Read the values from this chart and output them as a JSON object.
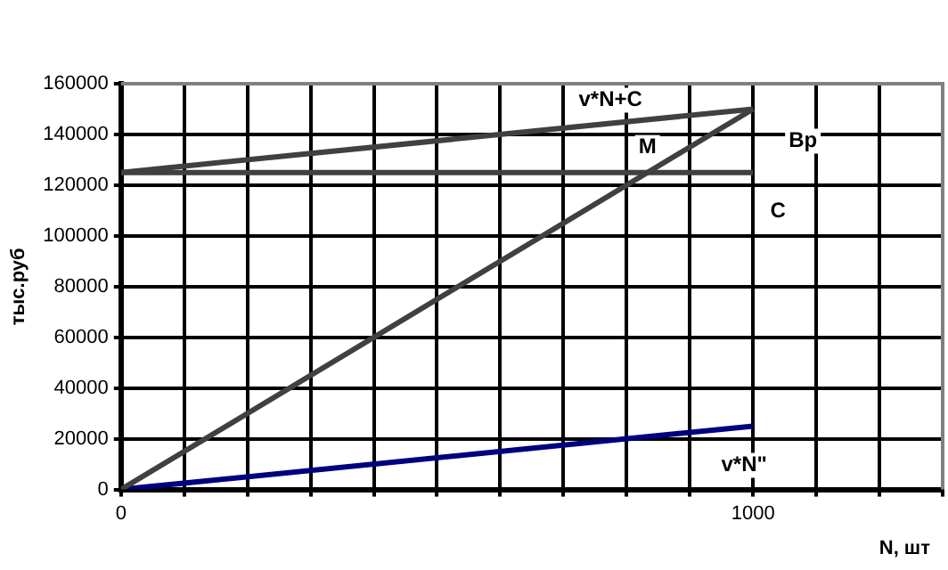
{
  "chart_data": {
    "type": "line",
    "ylabel": "тыс.руб",
    "xlabel": "N, шт",
    "x": [
      0,
      1000
    ],
    "series": [
      {
        "name": "Bp",
        "color": "#404040",
        "values": [
          0,
          150000
        ]
      },
      {
        "name": "C",
        "color": "#404040",
        "values": [
          125000,
          125000
        ]
      },
      {
        "name": "v*N+C",
        "color": "#404040",
        "values": [
          125000,
          150000
        ]
      },
      {
        "name": "v*N\"",
        "color": "#000080",
        "values": [
          0,
          25000
        ]
      }
    ],
    "xlim": [
      0,
      1300
    ],
    "xticks": [
      0,
      {
        "value": 100,
        "label": null
      },
      {
        "value": 200,
        "label": null
      },
      {
        "value": 300,
        "label": null
      },
      {
        "value": 400,
        "label": null
      },
      {
        "value": 500,
        "label": null
      },
      {
        "value": 600,
        "label": null
      },
      {
        "value": 700,
        "label": null
      },
      {
        "value": 800,
        "label": null
      },
      {
        "value": 900,
        "label": null
      },
      1000,
      {
        "value": 1100,
        "label": null
      },
      {
        "value": 1200,
        "label": null
      },
      {
        "value": 1300,
        "label": null
      }
    ],
    "ylim": [
      0,
      160000
    ],
    "yticks": [
      0,
      20000,
      40000,
      60000,
      80000,
      100000,
      120000,
      140000,
      160000
    ],
    "grid": true,
    "legend": false,
    "marker": "none",
    "line_style": "solid",
    "annotations": [
      {
        "text": "M",
        "x": 833,
        "y": 125000
      }
    ]
  }
}
